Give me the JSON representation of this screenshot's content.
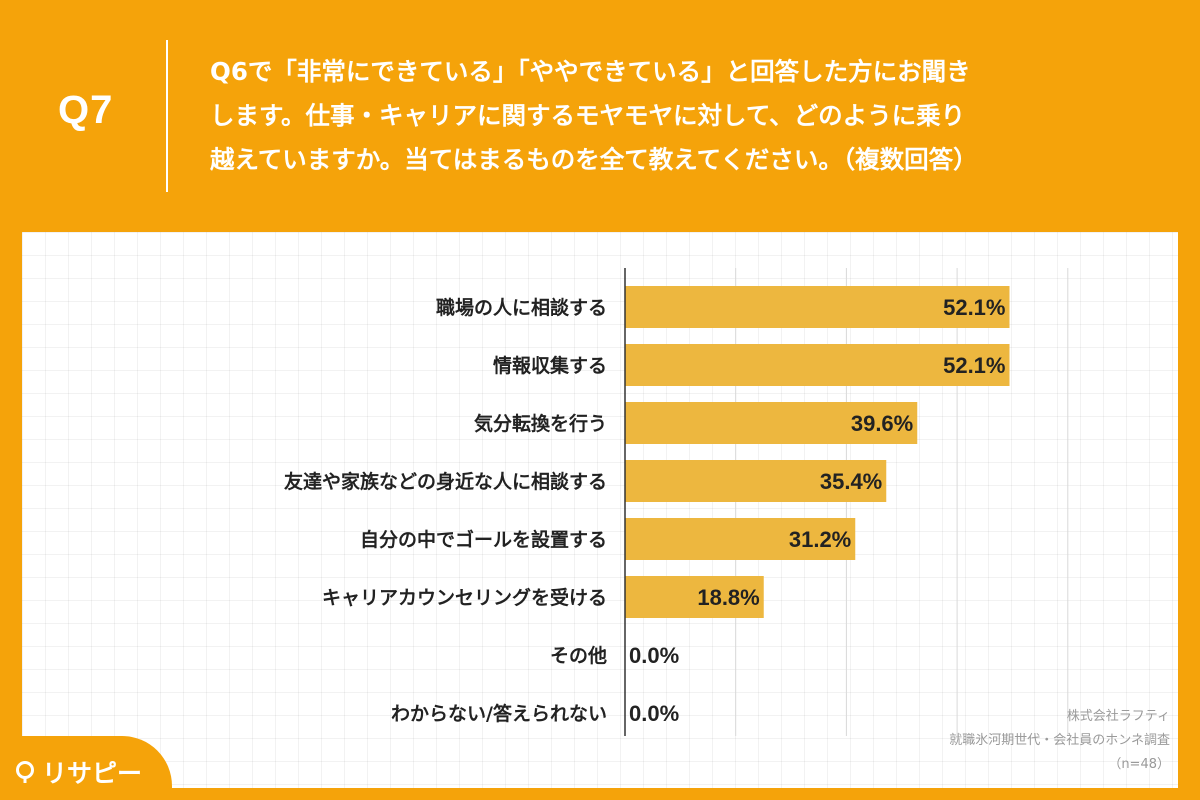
{
  "header": {
    "q_label": "Q7",
    "question_lines": [
      "Q6で「非常にできている」「ややできている」と回答した方にお聞き",
      "します。仕事・キャリアに関するモヤモヤに対して、どのように乗り",
      "越えていますか。当てはまるものを全て教えてください。（複数回答）"
    ]
  },
  "chart_data": {
    "type": "bar",
    "orientation": "horizontal",
    "title": "",
    "categories": [
      "職場の人に相談する",
      "情報収集する",
      "気分転換を行う",
      "友達や家族などの身近な人に相談する",
      "自分の中でゴールを設置する",
      "キャリアカウンセリングを受ける",
      "その他",
      "わからない/答えられない"
    ],
    "values": [
      52.1,
      52.1,
      39.6,
      35.4,
      31.2,
      18.8,
      0.0,
      0.0
    ],
    "value_labels": [
      "52.1%",
      "52.1%",
      "39.6%",
      "35.4%",
      "31.2%",
      "18.8%",
      "0.0%",
      "0.0%"
    ],
    "xlim": [
      0,
      60
    ],
    "grid": true,
    "bar_color": "#EDB73F",
    "gridline_color": "#d9d9d9",
    "axis_color": "#333333"
  },
  "source": {
    "lines": [
      "株式会社ラフティ",
      "就職氷河期世代・会社員のホンネ調査",
      "（n=48）"
    ]
  },
  "logo": {
    "text": "リサピー"
  },
  "colors": {
    "background": "#F5A30A",
    "card": "#FFFFFF"
  }
}
